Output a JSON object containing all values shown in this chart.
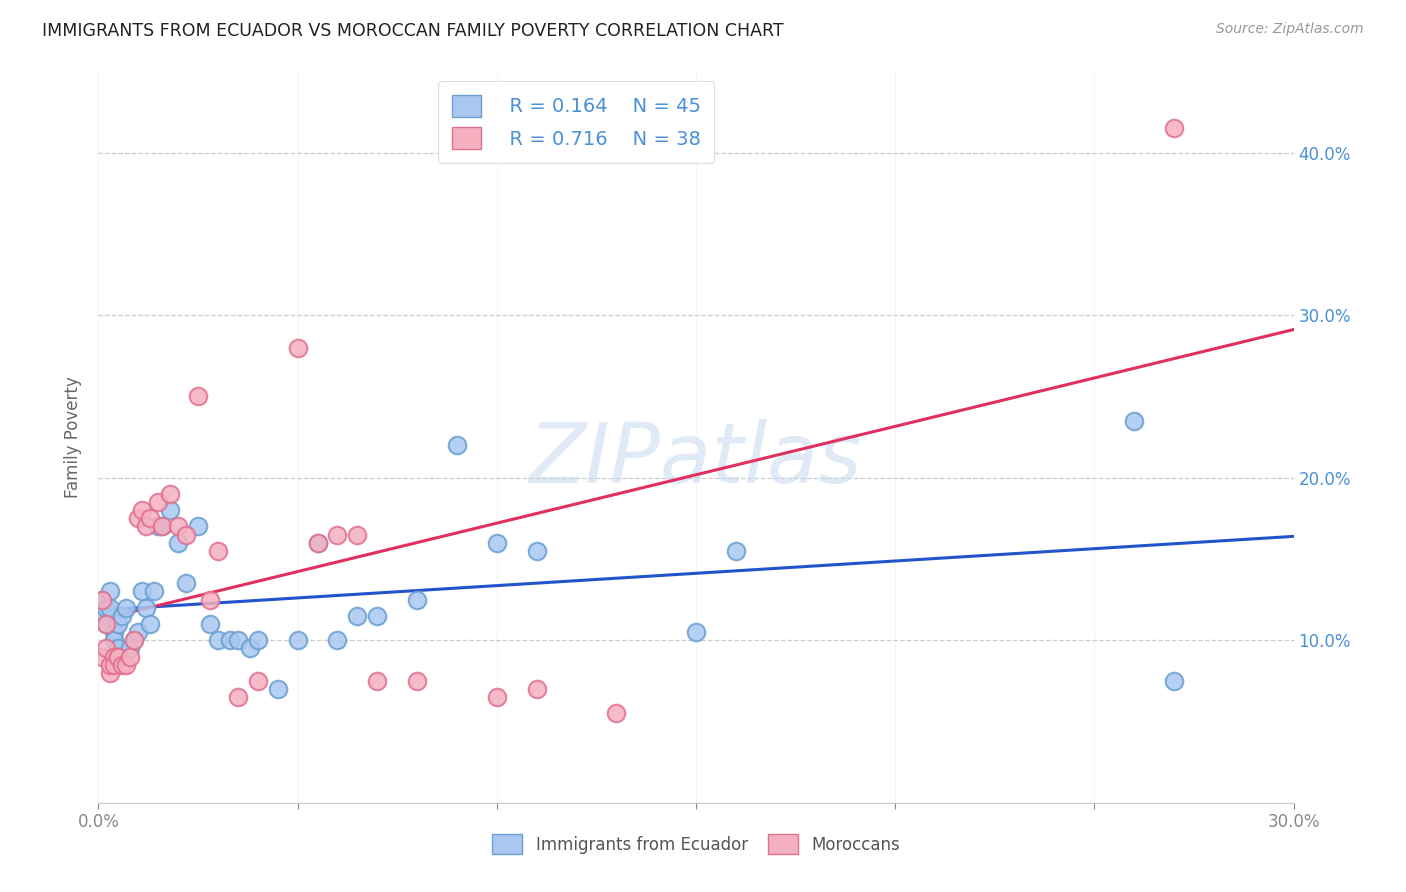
{
  "title": "IMMIGRANTS FROM ECUADOR VS MOROCCAN FAMILY POVERTY CORRELATION CHART",
  "source": "Source: ZipAtlas.com",
  "ylabel": "Family Poverty",
  "watermark": "ZIPatlas",
  "xlim": [
    0.0,
    0.3
  ],
  "ylim": [
    0.0,
    0.45
  ],
  "xticks": [
    0.0,
    0.05,
    0.1,
    0.15,
    0.2,
    0.25,
    0.3
  ],
  "xtick_labels_show": [
    "0.0%",
    "",
    "",
    "",
    "",
    "",
    "30.0%"
  ],
  "yticks_left": [
    0.0,
    0.1,
    0.2,
    0.3,
    0.4
  ],
  "yticks_right": [
    0.1,
    0.2,
    0.3,
    0.4
  ],
  "ecuador_color": "#a8c8f0",
  "ecuador_edge": "#6a9fd0",
  "morocco_color": "#f5b0c0",
  "morocco_edge": "#e07090",
  "line_ecuador_color": "#2255cc",
  "line_morocco_color": "#e03060",
  "legend_ecuador_R": "R = 0.164",
  "legend_ecuador_N": "N = 45",
  "legend_morocco_R": "R = 0.716",
  "legend_morocco_N": "N = 38",
  "ecuador_x": [
    0.001,
    0.001,
    0.002,
    0.002,
    0.003,
    0.003,
    0.004,
    0.004,
    0.005,
    0.005,
    0.006,
    0.007,
    0.008,
    0.009,
    0.01,
    0.011,
    0.012,
    0.013,
    0.014,
    0.015,
    0.016,
    0.018,
    0.02,
    0.022,
    0.025,
    0.028,
    0.03,
    0.033,
    0.035,
    0.038,
    0.04,
    0.045,
    0.05,
    0.055,
    0.06,
    0.065,
    0.07,
    0.08,
    0.09,
    0.1,
    0.11,
    0.15,
    0.16,
    0.26,
    0.27
  ],
  "ecuador_y": [
    0.125,
    0.115,
    0.12,
    0.11,
    0.13,
    0.12,
    0.105,
    0.1,
    0.095,
    0.11,
    0.115,
    0.12,
    0.095,
    0.1,
    0.105,
    0.13,
    0.12,
    0.11,
    0.13,
    0.17,
    0.17,
    0.18,
    0.16,
    0.135,
    0.17,
    0.11,
    0.1,
    0.1,
    0.1,
    0.095,
    0.1,
    0.07,
    0.1,
    0.16,
    0.1,
    0.115,
    0.115,
    0.125,
    0.22,
    0.16,
    0.155,
    0.105,
    0.155,
    0.235,
    0.075
  ],
  "morocco_x": [
    0.001,
    0.001,
    0.002,
    0.002,
    0.003,
    0.003,
    0.004,
    0.004,
    0.005,
    0.005,
    0.006,
    0.007,
    0.008,
    0.009,
    0.01,
    0.011,
    0.012,
    0.013,
    0.015,
    0.016,
    0.018,
    0.02,
    0.022,
    0.025,
    0.028,
    0.03,
    0.035,
    0.04,
    0.05,
    0.055,
    0.06,
    0.065,
    0.07,
    0.08,
    0.1,
    0.11,
    0.13,
    0.27
  ],
  "morocco_y": [
    0.125,
    0.09,
    0.095,
    0.11,
    0.08,
    0.085,
    0.09,
    0.085,
    0.09,
    0.09,
    0.085,
    0.085,
    0.09,
    0.1,
    0.175,
    0.18,
    0.17,
    0.175,
    0.185,
    0.17,
    0.19,
    0.17,
    0.165,
    0.25,
    0.125,
    0.155,
    0.065,
    0.075,
    0.28,
    0.16,
    0.165,
    0.165,
    0.075,
    0.075,
    0.065,
    0.07,
    0.055,
    0.415
  ]
}
